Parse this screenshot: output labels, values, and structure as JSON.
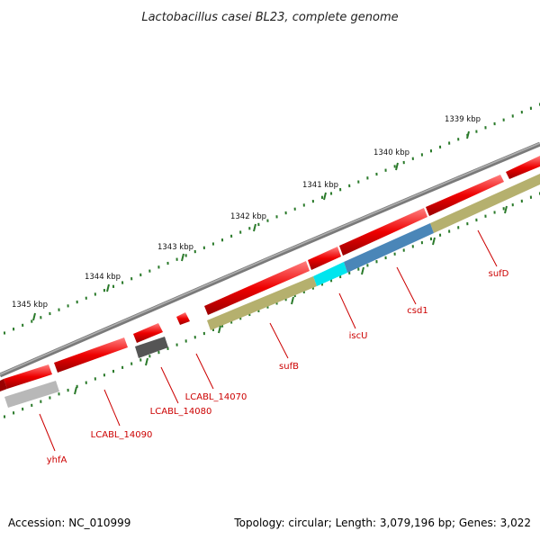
{
  "title": "Lactobacillus casei BL23, complete genome",
  "footer": {
    "accession": "Accession: NC_010999",
    "summary": "Topology: circular; Length: 3,079,196 bp; Genes: 3,022"
  },
  "scale_labels": [
    "1339 kbp",
    "1340 kbp",
    "1341 kbp",
    "1342 kbp",
    "1343 kbp",
    "1344 kbp",
    "1345 kbp"
  ],
  "gene_labels": [
    "sufD",
    "csd1",
    "iscU",
    "sufB",
    "LCABL_14070",
    "LCABL_14080",
    "LCABL_14090",
    "yhfA"
  ],
  "colors": {
    "backbone": "#7a7a7a",
    "gene_red": "#ee0000",
    "sufD": "#b5b06e",
    "csd1": "#4a86b8",
    "iscU": "#00e5ee",
    "sufB": "#b5b06e",
    "LCABL_14080": "#555555",
    "yhfA": "#b8b8b8",
    "ticks": "#2a7a2a",
    "label_red": "#cc0000"
  }
}
